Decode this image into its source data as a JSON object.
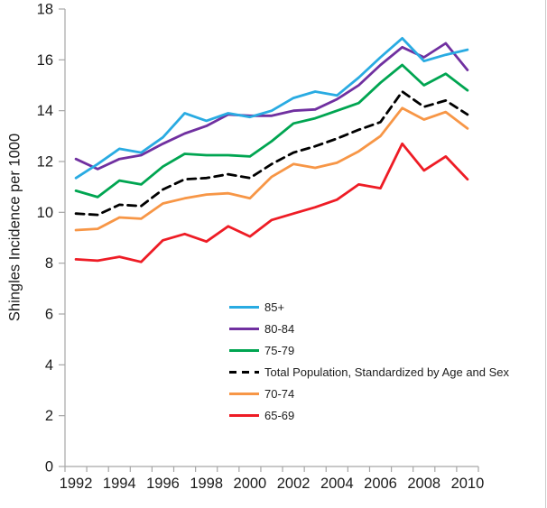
{
  "figure": {
    "background": "#ffffff",
    "frame_right_color": "#cbcbcb",
    "axis_color": "#a6a6a6",
    "text_color": "#1c1c1c"
  },
  "chart_data": {
    "type": "line",
    "title": "",
    "xlabel": "",
    "ylabel": "Shingles Incidence per 1000",
    "ylim": [
      0,
      18
    ],
    "ytick_step": 2,
    "grid": false,
    "legend_position": "inside-center-right",
    "x": [
      1992,
      1993,
      1994,
      1995,
      1996,
      1997,
      1998,
      1999,
      2000,
      2001,
      2002,
      2003,
      2004,
      2005,
      2006,
      2007,
      2008,
      2009,
      2010
    ],
    "xtick_labels": [
      "1992",
      "1994",
      "1996",
      "1998",
      "2000",
      "2002",
      "2004",
      "2006",
      "2008",
      "2010"
    ],
    "series": [
      {
        "name": "85+",
        "color": "#29ABE2",
        "dash": null,
        "values": [
          11.35,
          11.9,
          12.5,
          12.35,
          12.95,
          13.9,
          13.6,
          13.9,
          13.75,
          14.0,
          14.5,
          14.75,
          14.6,
          15.3,
          16.1,
          16.85,
          15.95,
          16.2,
          16.4
        ]
      },
      {
        "name": "80-84",
        "color": "#7030A0",
        "dash": null,
        "values": [
          12.1,
          11.7,
          12.1,
          12.25,
          12.7,
          13.1,
          13.4,
          13.85,
          13.8,
          13.8,
          14.0,
          14.05,
          14.45,
          15.0,
          15.8,
          16.5,
          16.1,
          16.65,
          15.6
        ]
      },
      {
        "name": "75-79",
        "color": "#00A551",
        "dash": null,
        "values": [
          10.85,
          10.6,
          11.25,
          11.1,
          11.8,
          12.3,
          12.25,
          12.25,
          12.2,
          12.8,
          13.5,
          13.7,
          14.0,
          14.3,
          15.1,
          15.8,
          15.0,
          15.45,
          14.8
        ]
      },
      {
        "name": "Total Population, Standardized by Age and Sex",
        "color": "#000000",
        "dash": "9 6",
        "values": [
          9.95,
          9.9,
          10.3,
          10.25,
          10.9,
          11.3,
          11.35,
          11.5,
          11.35,
          11.9,
          12.35,
          12.6,
          12.9,
          13.25,
          13.55,
          14.75,
          14.15,
          14.4,
          13.85
        ]
      },
      {
        "name": "70-74",
        "color": "#F79646",
        "dash": null,
        "values": [
          9.3,
          9.35,
          9.8,
          9.75,
          10.35,
          10.55,
          10.7,
          10.75,
          10.55,
          11.4,
          11.9,
          11.75,
          11.95,
          12.4,
          13.0,
          14.1,
          13.65,
          13.95,
          13.3
        ]
      },
      {
        "name": "65-69",
        "color": "#EE1C25",
        "dash": null,
        "values": [
          8.15,
          8.1,
          8.25,
          8.05,
          8.9,
          9.15,
          8.85,
          9.45,
          9.05,
          9.7,
          9.95,
          10.2,
          10.5,
          11.1,
          10.95,
          12.7,
          11.65,
          12.2,
          11.3
        ]
      }
    ]
  }
}
